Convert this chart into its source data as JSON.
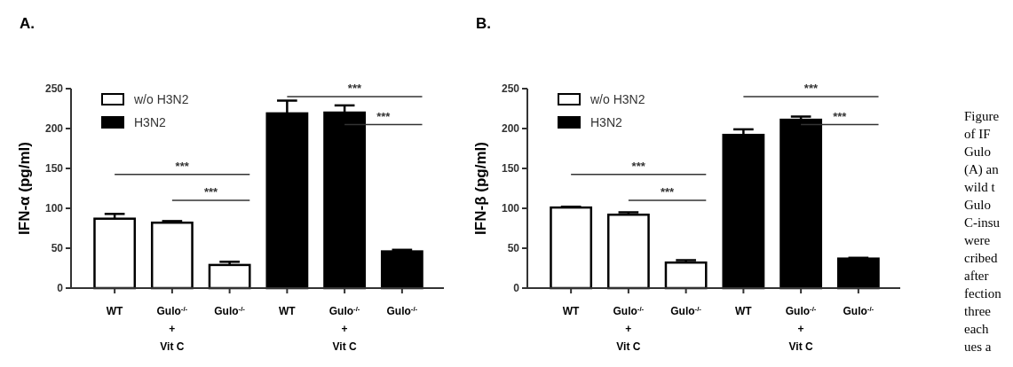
{
  "chart_data": [
    {
      "type": "bar",
      "title": "A.",
      "ylabel": "IFN-α (pg/ml)",
      "categories": [
        "WT",
        "Gulo$^{-/-}$\n+\nVit C",
        "Gulo$^{-/-}$",
        "WT",
        "Gulo$^{-/-}$\n+\nVit C",
        "Gulo$^{-/-}$"
      ],
      "series": [
        {
          "name": "w/o H3N2",
          "color": "#ffffff",
          "values": [
            87,
            82,
            29,
            null,
            null,
            null
          ],
          "errors": [
            [
              87,
              93
            ],
            [
              82,
              84
            ],
            [
              29,
              33
            ],
            null,
            null,
            null
          ]
        },
        {
          "name": "H3N2",
          "color": "#000000",
          "values": [
            null,
            null,
            null,
            219,
            220,
            46
          ],
          "errors": [
            null,
            null,
            null,
            [
              219,
              235
            ],
            [
              220,
              229
            ],
            [
              46,
              48
            ]
          ]
        }
      ],
      "ylim": [
        0,
        250
      ],
      "yticks": [
        0,
        50,
        100,
        150,
        200,
        250
      ],
      "legend": "top left",
      "annotations": [
        "***",
        "***",
        "***",
        "***"
      ]
    },
    {
      "type": "bar",
      "title": "B.",
      "ylabel": "IFN-β (pg/ml)",
      "categories": [
        "WT",
        "Gulo$^{-/-}$\n+\nVit C",
        "Gulo$^{-/-}$",
        "WT",
        "Gulo$^{-/-}$\n+\nVit C",
        "Gulo$^{-/-}$"
      ],
      "series": [
        {
          "name": "w/o H3N2",
          "color": "#ffffff",
          "values": [
            101,
            92,
            32,
            null,
            null,
            null
          ],
          "errors": [
            [
              101,
              102
            ],
            [
              92,
              95
            ],
            [
              32,
              35
            ],
            null,
            null,
            null
          ]
        },
        {
          "name": "H3N2",
          "color": "#000000",
          "values": [
            null,
            null,
            null,
            192,
            211,
            37
          ],
          "errors": [
            null,
            null,
            null,
            [
              192,
              199
            ],
            [
              211,
              215
            ],
            [
              37,
              38
            ]
          ]
        }
      ],
      "ylim": [
        0,
        250
      ],
      "yticks": [
        0,
        50,
        100,
        150,
        200,
        250
      ],
      "legend": "top left",
      "annotations": [
        "***",
        "***",
        "***",
        "***"
      ]
    },
    {
      "type": "other",
      "annotations": [
        "Figure",
        "of IF",
        "Gulo",
        "(A) an",
        "wild t",
        "Gulo",
        "C-insu",
        "were",
        "cribed",
        "after",
        "fection",
        "three",
        "each",
        "ues a"
      ]
    }
  ]
}
